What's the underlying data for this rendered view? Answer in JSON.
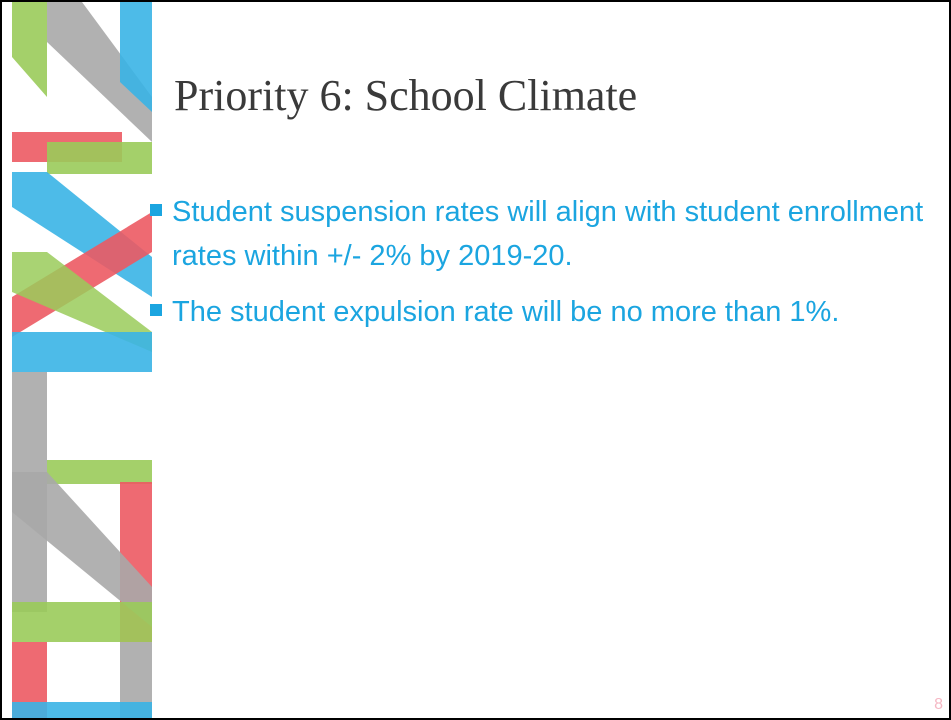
{
  "title": "Priority 6: School Climate",
  "bullets": [
    "Student suspension rates will align with student enrollment rates within +/- 2% by 2019-20.",
    "The student expulsion rate will be no more than 1%."
  ],
  "page_number": "8"
}
